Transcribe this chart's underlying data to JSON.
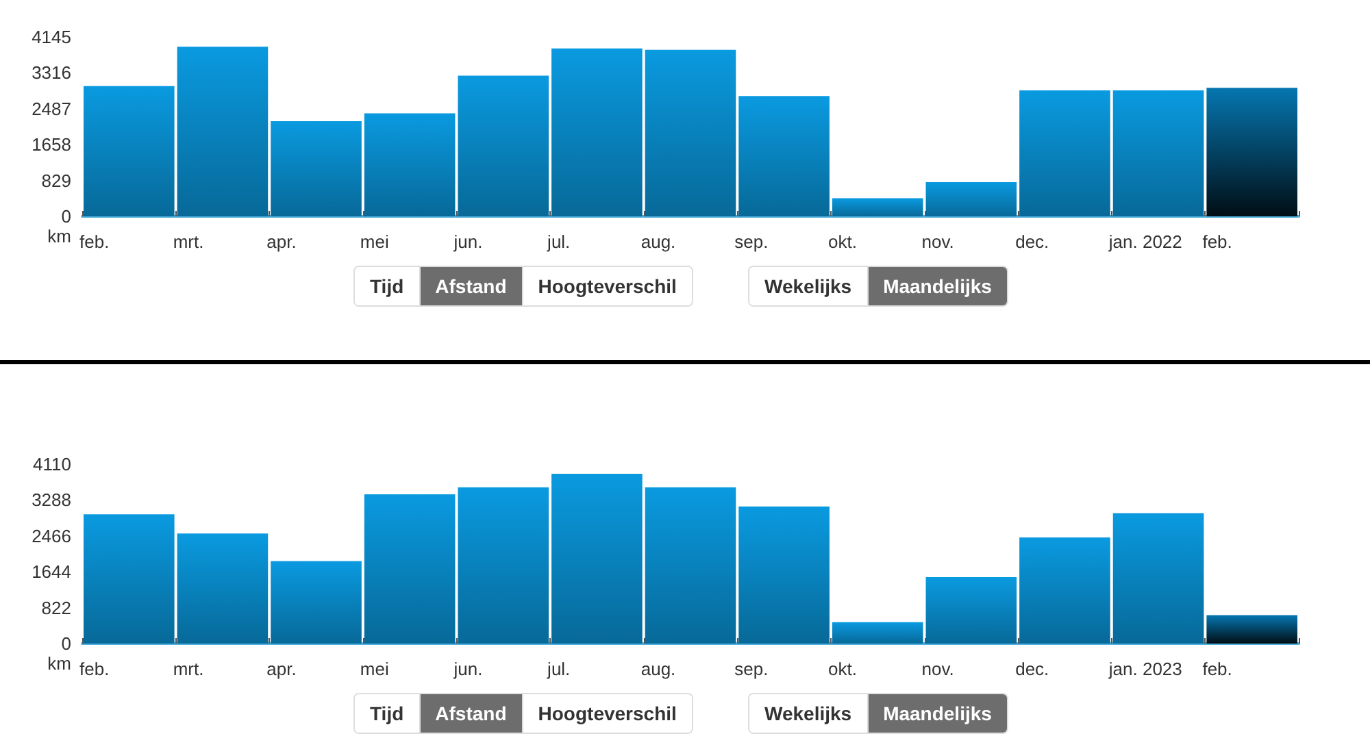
{
  "chart_data": [
    {
      "type": "bar",
      "ylabel": "km",
      "categories": [
        "feb.",
        "mrt.",
        "apr.",
        "mei",
        "jun.",
        "jul.",
        "aug.",
        "sep.",
        "okt.",
        "nov.",
        "dec.",
        "jan. 2022",
        "feb."
      ],
      "values": [
        3010,
        3920,
        2200,
        2380,
        3250,
        3880,
        3850,
        2780,
        420,
        790,
        2910,
        2910,
        2970
      ],
      "colors": [
        "#0a9ae0",
        "#0a9ae0",
        "#0a9ae0",
        "#0a9ae0",
        "#0a9ae0",
        "#0a9ae0",
        "#0a9ae0",
        "#0a9ae0",
        "#0a9ae0",
        "#0a9ae0",
        "#0a9ae0",
        "#0a9ae0",
        "#0676b0"
      ],
      "ylim": [
        0,
        4145
      ],
      "yticks": [
        0,
        829,
        1658,
        2487,
        3316,
        4145
      ],
      "annotations": [
        "Tijd",
        "Afstand",
        "Hoogteverschil",
        "Wekelijks",
        "Maandelijks"
      ]
    },
    {
      "type": "bar",
      "ylabel": "km",
      "categories": [
        "feb.",
        "mrt.",
        "apr.",
        "mei",
        "jun.",
        "jul.",
        "aug.",
        "sep.",
        "okt.",
        "nov.",
        "dec.",
        "jan. 2023",
        "feb."
      ],
      "values": [
        2960,
        2520,
        1890,
        3420,
        3580,
        3890,
        3580,
        3140,
        490,
        1520,
        2430,
        2990,
        650
      ],
      "colors": [
        "#0a9ae0",
        "#0a9ae0",
        "#0a9ae0",
        "#0a9ae0",
        "#0a9ae0",
        "#0a9ae0",
        "#0a9ae0",
        "#0a9ae0",
        "#0a9ae0",
        "#0a9ae0",
        "#0a9ae0",
        "#0a9ae0",
        "#0676b0"
      ],
      "ylim": [
        0,
        4110
      ],
      "yticks": [
        0,
        822,
        1644,
        2466,
        3288,
        4110
      ],
      "annotations": [
        "Tijd",
        "Afstand",
        "Hoogteverschil",
        "Wekelijks",
        "Maandelijks"
      ]
    }
  ]
}
